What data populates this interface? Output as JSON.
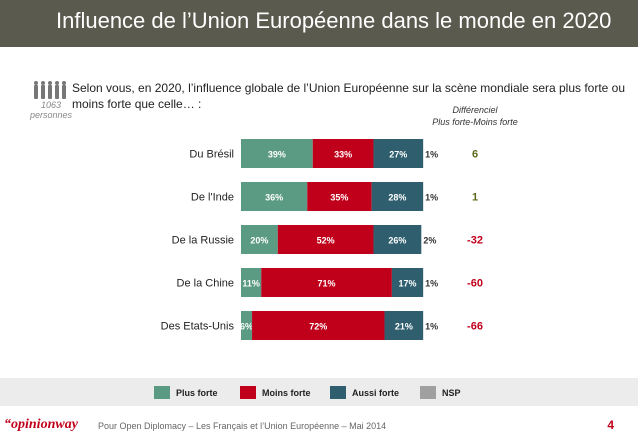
{
  "header": {
    "title": "Influence de l’Union Européenne dans le monde en 2020"
  },
  "sample": {
    "count": "1063",
    "unit": "personnes"
  },
  "question": "Selon vous, en 2020, l’influence globale de l’Union Européenne sur la scène mondiale sera plus forte ou moins forte que celle… :",
  "differential_header": {
    "line1": "Différenciel",
    "line2": "Plus forte-Moins forte"
  },
  "colors": {
    "plus_forte": "#5b9a83",
    "moins_forte": "#c0001a",
    "aussi_forte": "#2f5f6e",
    "nsp": "#a0a0a0",
    "diff_positive": "#5a6a1a",
    "diff_negative": "#c0001a"
  },
  "legend": {
    "items": [
      "Plus forte",
      "Moins forte",
      "Aussi forte",
      "NSP"
    ]
  },
  "chart_data": {
    "type": "bar",
    "orientation": "horizontal",
    "stacked": true,
    "unit": "%",
    "categories": [
      "Du Brésil",
      "De l'Inde",
      "De la Russie",
      "De la Chine",
      "Des Etats-Unis"
    ],
    "series": [
      {
        "name": "Plus forte",
        "values": [
          39,
          36,
          20,
          11,
          6
        ]
      },
      {
        "name": "Moins forte",
        "values": [
          33,
          35,
          52,
          71,
          72
        ]
      },
      {
        "name": "Aussi forte",
        "values": [
          27,
          28,
          26,
          17,
          21
        ]
      },
      {
        "name": "NSP",
        "values": [
          1,
          1,
          2,
          1,
          1
        ]
      }
    ],
    "labels": {
      "Plus forte": [
        "39%",
        "36%",
        "20%",
        "11%",
        "6%"
      ],
      "Moins forte": [
        "33%",
        "35%",
        "52%",
        "71%",
        "72%"
      ],
      "Aussi forte": [
        "27%",
        "28%",
        "26%",
        "17%",
        "21%"
      ],
      "NSP": [
        "1%",
        "1%",
        "2%",
        "1%",
        "1%"
      ]
    },
    "differential": [
      "6",
      "1",
      "-32",
      "-60",
      "-66"
    ],
    "xlim": [
      0,
      100
    ],
    "legend_position": "bottom"
  },
  "footer": {
    "brand_quote": "“",
    "brand_opinion": "opinion",
    "brand_way": "way",
    "text": "Pour Open Diplomacy – Les Français et l’Union Européenne – Mai 2014",
    "page": "4"
  }
}
